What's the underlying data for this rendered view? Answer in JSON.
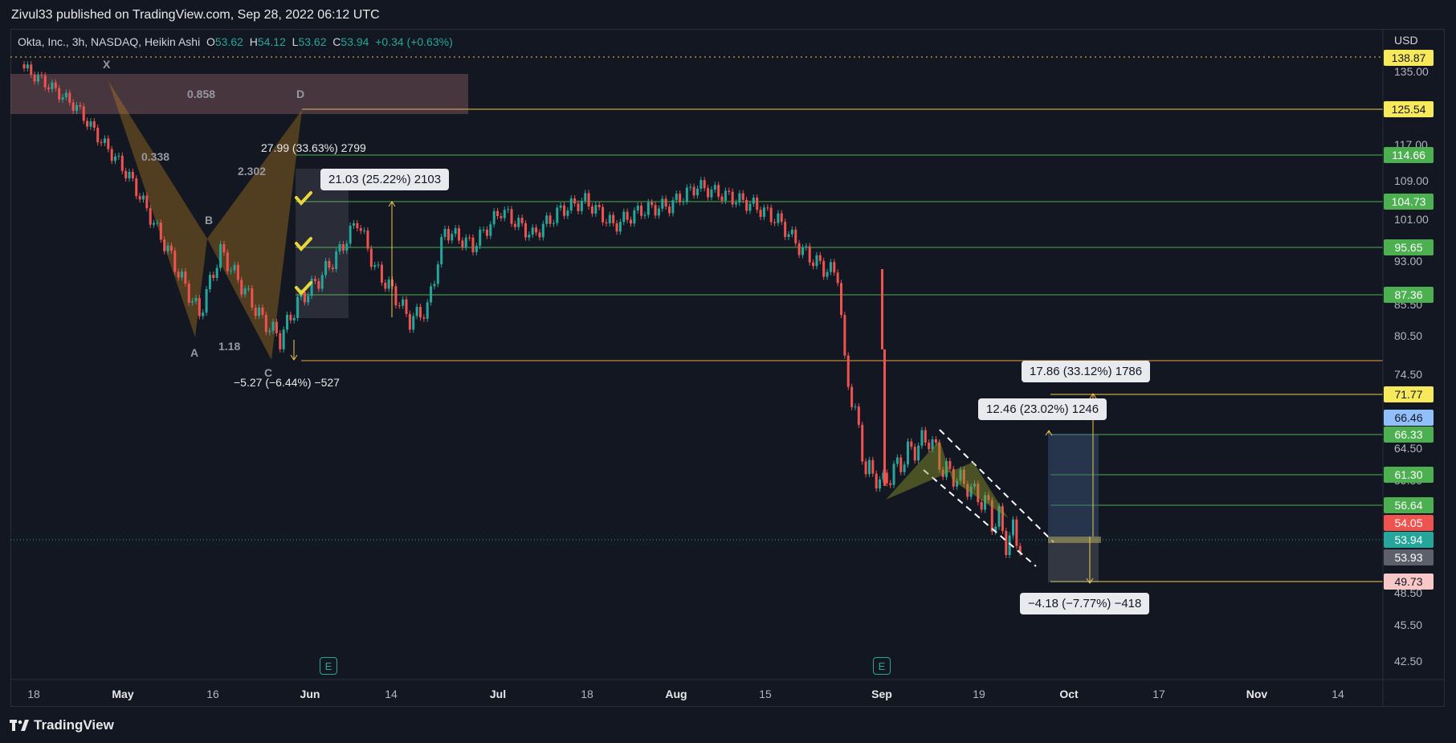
{
  "header": {
    "published_by": "Zivul33 published on TradingView.com, Sep 28, 2022 06:12 UTC"
  },
  "legend": {
    "symbol": "Okta, Inc., 3h, NASDAQ, Heikin Ashi",
    "o_label": "O",
    "o": "53.62",
    "h_label": "H",
    "h": "54.12",
    "l_label": "L",
    "l": "53.62",
    "c_label": "C",
    "c": "53.94",
    "change": "+0.34 (+0.63%)"
  },
  "footer": {
    "brand": "TradingView"
  },
  "colors": {
    "background": "#131722",
    "up": "#26a69a",
    "down": "#ef5350",
    "hline_green": "#4caf50",
    "hline_yellow": "#f2c94c"
  },
  "chart_data": {
    "type": "candlestick",
    "currency": "USD",
    "y_ticks": [
      "135.00",
      "117.00",
      "109.00",
      "101.00",
      "93.00",
      "85.50",
      "80.50",
      "74.50",
      "64.50",
      "59.50",
      "48.50",
      "45.50",
      "42.50"
    ],
    "x_ticks": [
      {
        "label": "18",
        "bold": false
      },
      {
        "label": "May",
        "bold": true
      },
      {
        "label": "16",
        "bold": false
      },
      {
        "label": "Jun",
        "bold": true
      },
      {
        "label": "14",
        "bold": false
      },
      {
        "label": "Jul",
        "bold": true
      },
      {
        "label": "18",
        "bold": false
      },
      {
        "label": "Aug",
        "bold": true
      },
      {
        "label": "15",
        "bold": false
      },
      {
        "label": "Sep",
        "bold": true
      },
      {
        "label": "19",
        "bold": false
      },
      {
        "label": "Oct",
        "bold": true
      },
      {
        "label": "17",
        "bold": false
      },
      {
        "label": "Nov",
        "bold": true
      },
      {
        "label": "14",
        "bold": false
      }
    ],
    "price_tags": [
      {
        "value": "138.87",
        "bg": "#f7e85c",
        "fg": "#131722"
      },
      {
        "value": "125.54",
        "bg": "#f7e85c",
        "fg": "#131722"
      },
      {
        "value": "114.66",
        "bg": "#4caf50",
        "fg": "#ffffff"
      },
      {
        "value": "104.73",
        "bg": "#4caf50",
        "fg": "#ffffff"
      },
      {
        "value": "95.65",
        "bg": "#4caf50",
        "fg": "#ffffff"
      },
      {
        "value": "87.36",
        "bg": "#4caf50",
        "fg": "#ffffff"
      },
      {
        "value": "71.77",
        "bg": "#f7e85c",
        "fg": "#131722"
      },
      {
        "value": "66.46",
        "bg": "#90bff9",
        "fg": "#131722"
      },
      {
        "value": "66.33",
        "bg": "#4caf50",
        "fg": "#ffffff"
      },
      {
        "value": "61.30",
        "bg": "#4caf50",
        "fg": "#ffffff"
      },
      {
        "value": "56.64",
        "bg": "#4caf50",
        "fg": "#ffffff"
      },
      {
        "value": "54.05",
        "bg": "#ef5350",
        "fg": "#ffffff"
      },
      {
        "value": "53.94",
        "bg": "#26a69a",
        "fg": "#ffffff"
      },
      {
        "value": "53.93",
        "bg": "#5d606b",
        "fg": "#ffffff"
      },
      {
        "value": "49.73",
        "bg": "#f8c8c8",
        "fg": "#131722"
      }
    ],
    "pattern_labels": [
      "X",
      "D",
      "A",
      "B",
      "C",
      "0.858",
      "0.338",
      "2.302",
      "1.18"
    ],
    "measurements": {
      "m1": "27.99 (33.63%) 2799",
      "m2": "21.03 (25.22%) 2103",
      "m3": "−5.27 (−6.44%) −527",
      "m4": "17.86 (33.12%) 1786",
      "m5": "12.46 (23.02%) 1246",
      "m6": "−4.18 (−7.77%) −418"
    },
    "earnings_marker": "E",
    "series_close_path": [
      [
        0,
        136
      ],
      [
        8,
        131
      ],
      [
        15,
        126
      ],
      [
        22,
        118
      ],
      [
        30,
        110
      ],
      [
        38,
        99
      ],
      [
        45,
        90
      ],
      [
        50,
        84
      ],
      [
        56,
        95
      ],
      [
        62,
        89
      ],
      [
        68,
        83
      ],
      [
        73,
        80
      ],
      [
        78,
        86
      ],
      [
        84,
        90
      ],
      [
        90,
        95
      ],
      [
        95,
        101
      ],
      [
        100,
        92
      ],
      [
        105,
        88
      ],
      [
        110,
        83
      ],
      [
        115,
        85
      ],
      [
        120,
        99
      ],
      [
        128,
        96
      ],
      [
        136,
        103
      ],
      [
        145,
        98
      ],
      [
        153,
        103
      ],
      [
        160,
        105
      ],
      [
        168,
        100
      ],
      [
        176,
        103
      ],
      [
        184,
        104
      ],
      [
        192,
        108
      ],
      [
        200,
        106
      ],
      [
        208,
        104
      ],
      [
        215,
        101
      ],
      [
        222,
        95
      ],
      [
        228,
        92
      ],
      [
        232,
        91
      ],
      [
        234,
        76
      ],
      [
        240,
        62
      ],
      [
        245,
        60
      ],
      [
        252,
        64
      ],
      [
        258,
        66
      ],
      [
        262,
        62
      ],
      [
        268,
        60
      ],
      [
        274,
        57
      ],
      [
        280,
        54
      ],
      [
        285,
        54
      ]
    ]
  }
}
